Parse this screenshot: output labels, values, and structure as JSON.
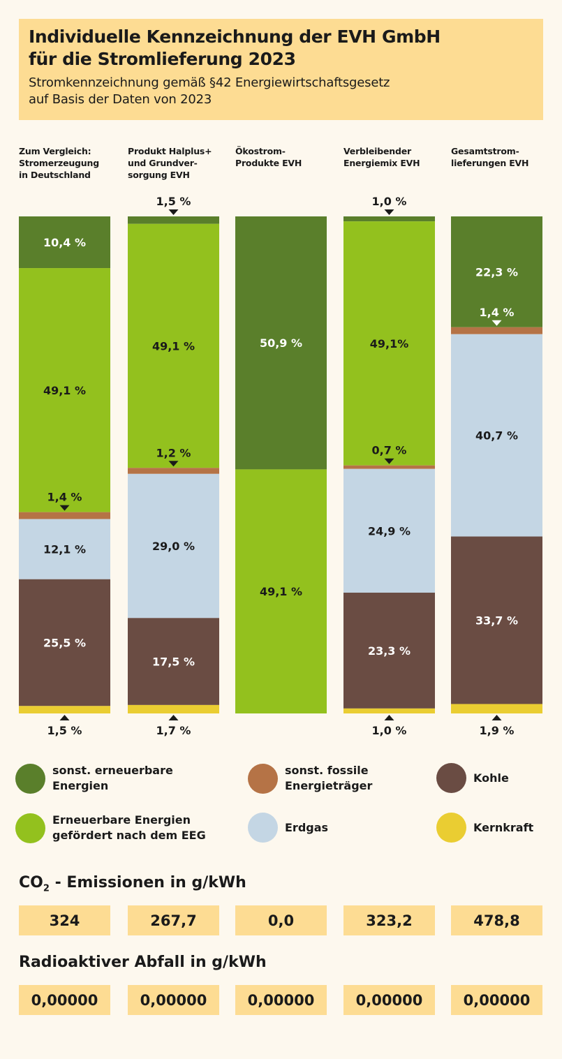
{
  "header": {
    "title_line1": "Individuelle Kennzeichnung der EVH GmbH",
    "title_line2": "für die Stromlieferung 2023",
    "subtitle_line1": "Stromkennzeichnung gemäß §42 Energiewirtschaftsgesetz",
    "subtitle_line2": "auf Basis der Daten von 2023"
  },
  "colors": {
    "sonst_ee": "#5a7f2b",
    "eeg": "#93c11e",
    "fossil": "#b57346",
    "erdgas": "#c4d6e4",
    "kohle": "#6a4c43",
    "kernkraft": "#eacd32"
  },
  "chart_data": {
    "type": "bar",
    "stacked": true,
    "normalized": true,
    "categories": [
      "Zum Vergleich:\nStromerzeugung\nin Deutschland",
      "Produkt Halplus+\nund Grundver-\nsorgung EVH",
      "Ökostrom-\nProdukte EVH",
      "Verbleibender\nEnergiemix EVH",
      "Gesamtstrom-\nlieferungen EVH"
    ],
    "series": [
      {
        "name": "sonst. erneuerbare Energien",
        "color": "#5a7f2b",
        "values": [
          10.4,
          1.5,
          50.9,
          1.0,
          22.3
        ],
        "labels": [
          "10,4 %",
          "1,5 %",
          "50,9 %",
          "1,0 %",
          "22,3 %"
        ]
      },
      {
        "name": "Erneuerbare Energien gefördert nach dem EEG",
        "color": "#93c11e",
        "values": [
          49.1,
          49.1,
          49.1,
          49.1,
          0
        ],
        "labels": [
          "49,1 %",
          "49,1 %",
          "49,1 %",
          "49,1%",
          ""
        ]
      },
      {
        "name": "sonst. fossile Energieträger",
        "color": "#b57346",
        "values": [
          1.4,
          1.2,
          0,
          0.7,
          1.4
        ],
        "labels": [
          "1,4 %",
          "1,2 %",
          "",
          "0,7 %",
          "1,4 %"
        ]
      },
      {
        "name": "Erdgas",
        "color": "#c4d6e4",
        "values": [
          12.1,
          29.0,
          0,
          24.9,
          40.7
        ],
        "labels": [
          "12,1 %",
          "29,0 %",
          "",
          "24,9 %",
          "40,7 %"
        ]
      },
      {
        "name": "Kohle",
        "color": "#6a4c43",
        "values": [
          25.5,
          17.5,
          0,
          23.3,
          33.7
        ],
        "labels": [
          "25,5 %",
          "17,5 %",
          "",
          "23,3 %",
          "33,7 %"
        ]
      },
      {
        "name": "Kernkraft",
        "color": "#eacd32",
        "values": [
          1.5,
          1.7,
          0,
          1.0,
          1.9
        ],
        "labels": [
          "1,5 %",
          "1,7 %",
          "",
          "1,0 %",
          "1,9 %"
        ]
      }
    ],
    "unit": "%"
  },
  "legend": [
    {
      "label": "sonst. erneuerbare\nEnergien",
      "color": "#5a7f2b"
    },
    {
      "label": "sonst. fossile\nEnergieträger",
      "color": "#b57346"
    },
    {
      "label": "Kohle",
      "color": "#6a4c43"
    },
    {
      "label": "Erneuerbare Energien\ngefördert nach dem EEG",
      "color": "#93c11e"
    },
    {
      "label": "Erdgas",
      "color": "#c4d6e4"
    },
    {
      "label": "Kernkraft",
      "color": "#eacd32"
    }
  ],
  "co2": {
    "title_prefix": "CO",
    "title_sub": "2",
    "title_rest": " - Emissionen in g/kWh",
    "values": [
      "324",
      "267,7",
      "0,0",
      "323,2",
      "478,8"
    ]
  },
  "waste": {
    "title": "Radioaktiver Abfall in g/kWh",
    "values": [
      "0,00000",
      "0,00000",
      "0,00000",
      "0,00000",
      "0,00000"
    ]
  }
}
